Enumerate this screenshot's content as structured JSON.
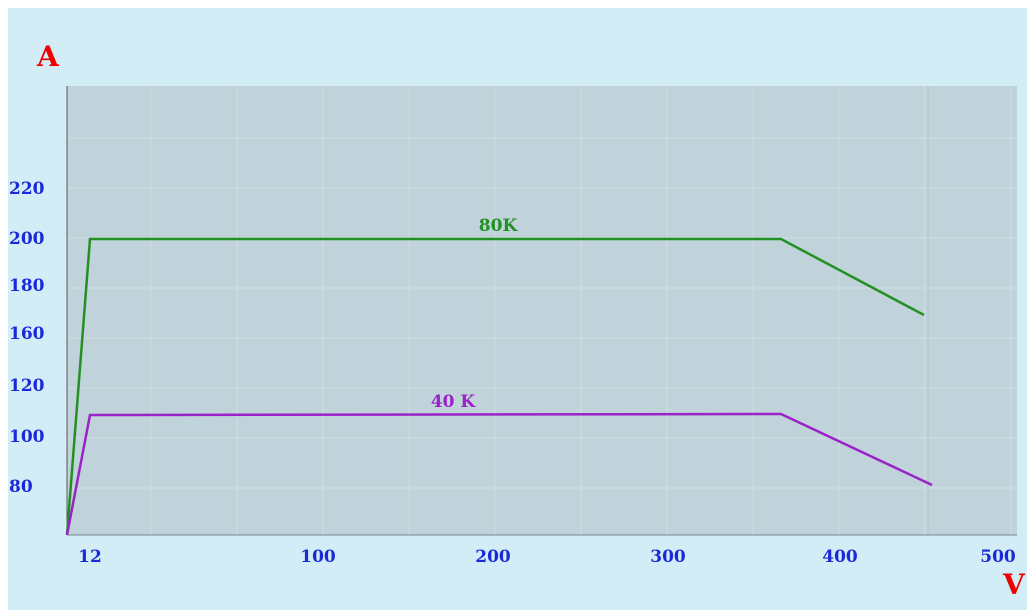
{
  "chart_data": {
    "type": "line",
    "xlabel": "V",
    "ylabel": "A",
    "xlim": [
      0,
      500
    ],
    "ylim": [
      60,
      250
    ],
    "x_ticks": [
      12,
      100,
      200,
      300,
      400,
      500
    ],
    "y_ticks": [
      80,
      100,
      120,
      160,
      180,
      200,
      220
    ],
    "grid": true,
    "colors": {
      "background": "#d3edf7",
      "plot_area": "#c0d3da",
      "tick_labels": "#1a2ad8",
      "axis_letters": "#ee0000"
    },
    "series": [
      {
        "name": "80K",
        "color": "#239023",
        "points": [
          [
            0,
            60
          ],
          [
            12,
            200
          ],
          [
            410,
            200
          ],
          [
            492,
            170
          ]
        ]
      },
      {
        "name": "40 K",
        "color": "#9a22c9",
        "points": [
          [
            0,
            60
          ],
          [
            12,
            108
          ],
          [
            410,
            109
          ],
          [
            496,
            80
          ]
        ]
      }
    ]
  }
}
